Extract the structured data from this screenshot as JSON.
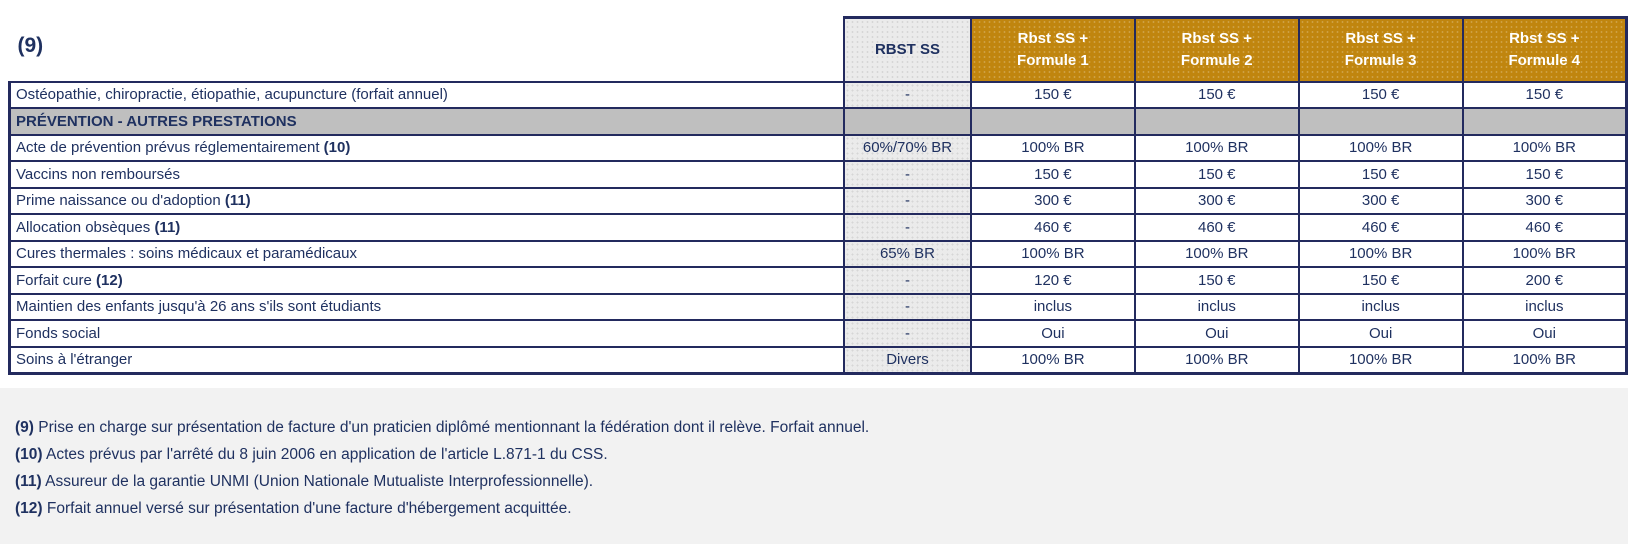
{
  "page": {
    "corner_label": "(9)",
    "colors": {
      "gold": "#C0850E",
      "navy": "#1F3160",
      "border": "#232A5E",
      "cellgray": "#EBEBEB",
      "sectiongray": "#BFBFBF",
      "footerbg": "#F2F2F2"
    }
  },
  "table": {
    "rbst_header": "RBST SS",
    "formule_headers": [
      {
        "line1": "Rbst SS +",
        "line2": "Formule 1"
      },
      {
        "line1": "Rbst SS +",
        "line2": "Formule 2"
      },
      {
        "line1": "Rbst SS +",
        "line2": "Formule 3"
      },
      {
        "line1": "Rbst SS +",
        "line2": "Formule 4"
      }
    ],
    "rows": [
      {
        "type": "data",
        "label": "Ostéopathie, chiropractie, étiopathie, acupuncture (forfait annuel)",
        "note": "",
        "rbst": "-",
        "values": [
          "150 €",
          "150 €",
          "150 €",
          "150 €"
        ]
      },
      {
        "type": "section",
        "label": "PRÉVENTION - AUTRES PRESTATIONS"
      },
      {
        "type": "data",
        "label": "Acte de prévention prévus réglementairement",
        "note": "(10)",
        "rbst": "60%/70% BR",
        "values": [
          "100% BR",
          "100% BR",
          "100% BR",
          "100% BR"
        ]
      },
      {
        "type": "data",
        "label": "Vaccins non remboursés",
        "note": "",
        "rbst": "-",
        "values": [
          "150 €",
          "150 €",
          "150 €",
          "150 €"
        ]
      },
      {
        "type": "data",
        "label": "Prime naissance ou d'adoption",
        "note": "(11)",
        "rbst": "-",
        "values": [
          "300 €",
          "300 €",
          "300 €",
          "300 €"
        ]
      },
      {
        "type": "data",
        "label": "Allocation obsèques",
        "note": "(11)",
        "rbst": "-",
        "values": [
          "460 €",
          "460 €",
          "460 €",
          "460 €"
        ]
      },
      {
        "type": "data",
        "label": "Cures thermales : soins médicaux et paramédicaux",
        "note": "",
        "rbst": "65% BR",
        "values": [
          "100% BR",
          "100% BR",
          "100% BR",
          "100% BR"
        ]
      },
      {
        "type": "data",
        "label": "Forfait cure",
        "note": "(12)",
        "rbst": "-",
        "values": [
          "120 €",
          "150 €",
          "150 €",
          "200 €"
        ]
      },
      {
        "type": "data",
        "label": "Maintien des enfants jusqu'à 26 ans s'ils sont étudiants",
        "note": "",
        "rbst": "-",
        "values": [
          "inclus",
          "inclus",
          "inclus",
          "inclus"
        ]
      },
      {
        "type": "data",
        "label": "Fonds social",
        "note": "",
        "rbst": "-",
        "values": [
          "Oui",
          "Oui",
          "Oui",
          "Oui"
        ]
      },
      {
        "type": "data",
        "label": "Soins à l'étranger",
        "note": "",
        "rbst": "Divers",
        "values": [
          "100% BR",
          "100% BR",
          "100% BR",
          "100% BR"
        ]
      }
    ]
  },
  "footnotes": [
    {
      "ref": "(9)",
      "text": "Prise en charge sur présentation de facture d'un praticien diplômé mentionnant la fédération dont il relève. Forfait annuel."
    },
    {
      "ref": "(10)",
      "text": "Actes prévus par l'arrêté du 8 juin 2006 en application de l'article L.871-1 du CSS."
    },
    {
      "ref": "(11)",
      "text": "Assureur de la garantie UNMI (Union Nationale Mutualiste Interprofessionnelle)."
    },
    {
      "ref": "(12)",
      "text": "Forfait annuel versé sur présentation d'une facture d'hébergement acquittée."
    }
  ]
}
